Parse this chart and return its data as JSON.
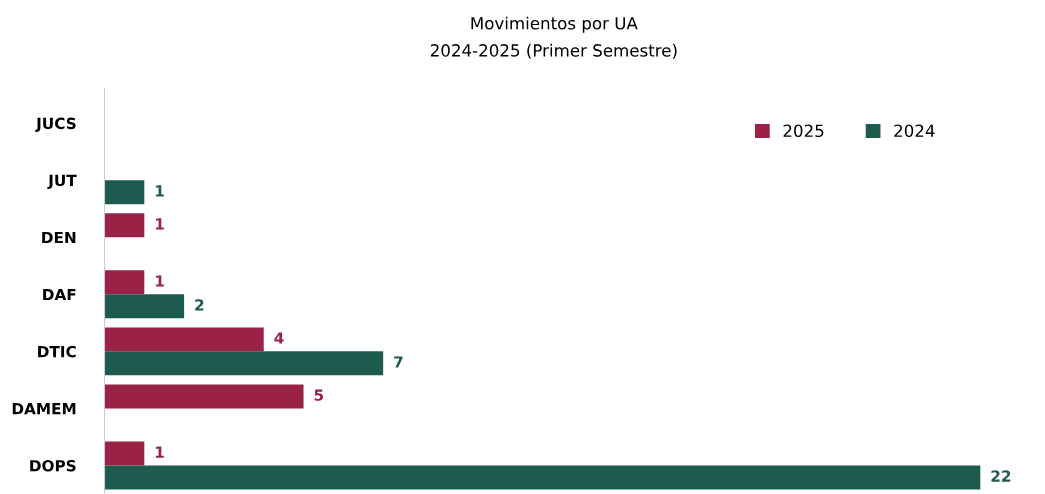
{
  "chart_data": {
    "type": "bar",
    "orientation": "horizontal",
    "title": "Movimientos por UA",
    "subtitle": "2024-2025 (Primer Semestre)",
    "categories": [
      "JUCS",
      "JUT",
      "DEN",
      "DAF",
      "DTIC",
      "DAMEM",
      "DOPS"
    ],
    "series": [
      {
        "name": "2025",
        "color": "#9b2247",
        "values": [
          null,
          null,
          1,
          1,
          4,
          5,
          1
        ]
      },
      {
        "name": "2024",
        "color": "#1e5b4f",
        "values": [
          null,
          1,
          null,
          2,
          7,
          null,
          22
        ]
      }
    ],
    "data_labels": true,
    "legend": "top right",
    "tick_labels": "y"
  }
}
